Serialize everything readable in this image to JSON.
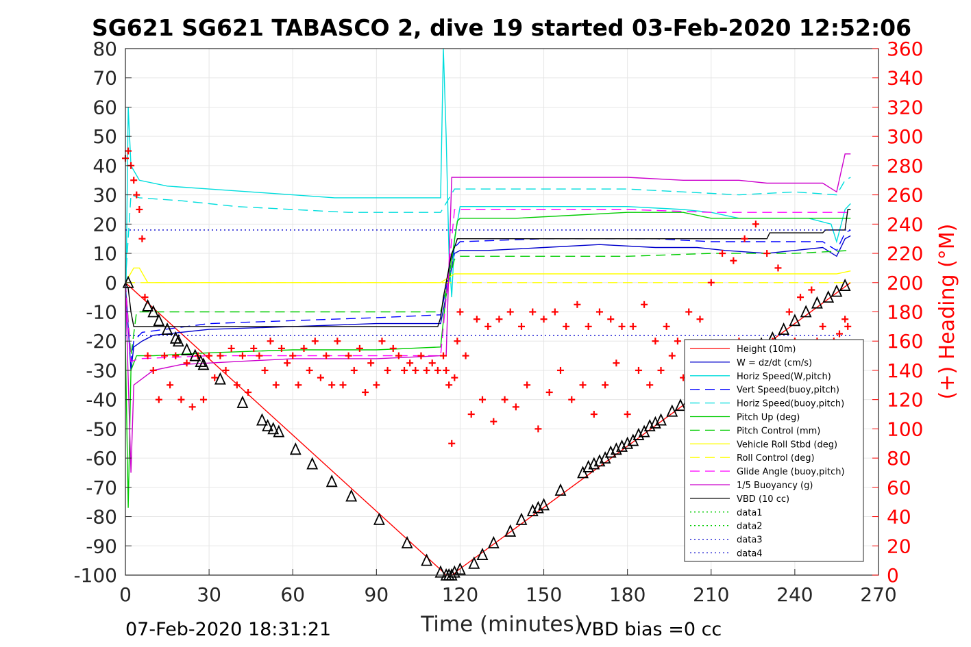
{
  "chart_data": {
    "type": "line",
    "title": "SG621 SG621 TABASCO 2, dive 19 started 03-Feb-2020 12:52:06",
    "xlabel": "Time (minutes)",
    "ylabel_right": "(+) Heading (°M)",
    "xlim": [
      0,
      270
    ],
    "ylim_left": [
      -100,
      80
    ],
    "ylim_right": [
      0,
      360
    ],
    "x_ticks": [
      "0",
      "30",
      "60",
      "90",
      "120",
      "150",
      "180",
      "210",
      "240",
      "270"
    ],
    "y_ticks_left": [
      "-100",
      "-90",
      "-80",
      "-70",
      "-60",
      "-50",
      "-40",
      "-30",
      "-20",
      "-10",
      "0",
      "10",
      "20",
      "30",
      "40",
      "50",
      "60",
      "70",
      "80"
    ],
    "y_ticks_right": [
      "0",
      "20",
      "40",
      "60",
      "80",
      "100",
      "120",
      "140",
      "160",
      "180",
      "200",
      "220",
      "240",
      "260",
      "280",
      "300",
      "320",
      "340",
      "360"
    ],
    "grid": true,
    "legend_position": "lower-right",
    "footer_left": "07-Feb-2020 18:31:21",
    "footer_right": "VBD bias =0 cc",
    "series": [
      {
        "name": "Height (10m)",
        "color": "#ff0000",
        "style": "solid",
        "x": [
          0,
          114,
          115,
          116,
          117,
          118,
          119,
          260
        ],
        "y": [
          0,
          -99,
          -100,
          -100,
          -100,
          -99.5,
          -98.5,
          0
        ]
      },
      {
        "name": "W = dz/dt (cm/s)",
        "color": "#0000cc",
        "style": "solid",
        "x": [
          0,
          2,
          3,
          6,
          10,
          30,
          60,
          90,
          113,
          118,
          120,
          130,
          150,
          170,
          190,
          205,
          215,
          230,
          250,
          255,
          258,
          260
        ],
        "y": [
          0,
          -30,
          -22,
          -20,
          -18,
          -16,
          -15,
          -14,
          -14,
          10,
          11,
          11,
          12,
          13,
          12,
          12,
          11,
          10,
          12,
          9,
          15,
          16
        ]
      },
      {
        "name": "Horiz Speed(W,pitch)",
        "color": "#00dddd",
        "style": "solid",
        "x": [
          0,
          1,
          2,
          5,
          15,
          30,
          45,
          60,
          75,
          90,
          105,
          113,
          114,
          115,
          116,
          117,
          118,
          120,
          140,
          160,
          180,
          200,
          210,
          220,
          235,
          245,
          253,
          255,
          258,
          260
        ],
        "y": [
          -20,
          60,
          40,
          35,
          33,
          32,
          31,
          30,
          29,
          29,
          29,
          29,
          80,
          50,
          10,
          -5,
          15,
          26,
          26,
          26,
          26,
          25,
          24,
          22,
          22,
          22,
          20,
          14,
          25,
          27
        ]
      },
      {
        "name": "Vert Speed(buoy,pitch)",
        "color": "#0000ff",
        "style": "dashed",
        "x": [
          0,
          2,
          3,
          6,
          30,
          60,
          90,
          113,
          118,
          120,
          150,
          170,
          190,
          210,
          230,
          250,
          255,
          258,
          260
        ],
        "y": [
          0,
          -27,
          -20,
          -17,
          -14,
          -13,
          -12,
          -11,
          12,
          14,
          15,
          15,
          15,
          14,
          14,
          14,
          11,
          17,
          18
        ]
      },
      {
        "name": "Horiz Speed(buoy,pitch)",
        "color": "#00dddd",
        "style": "dashed",
        "x": [
          0,
          2,
          5,
          20,
          40,
          60,
          80,
          100,
          113,
          118,
          120,
          140,
          160,
          180,
          200,
          220,
          240,
          255,
          258,
          260
        ],
        "y": [
          0,
          30,
          29,
          28,
          26,
          25,
          24,
          24,
          24,
          32,
          32,
          32,
          32,
          32,
          31,
          30,
          31,
          30,
          35,
          36
        ]
      },
      {
        "name": "Pitch Up (deg)",
        "color": "#00cc00",
        "style": "solid",
        "x": [
          0,
          1,
          2,
          4,
          10,
          30,
          60,
          90,
          113,
          115,
          117,
          119,
          120,
          140,
          160,
          180,
          200,
          210,
          230,
          250,
          258,
          260
        ],
        "y": [
          -20,
          -77,
          -30,
          -25,
          -25,
          -24,
          -23,
          -23,
          -22,
          -4,
          8,
          21,
          22,
          22,
          23,
          24,
          24,
          22,
          22,
          22,
          22,
          22
        ]
      },
      {
        "name": "Pitch Control (mm)",
        "color": "#00cc00",
        "style": "dashed",
        "x": [
          0,
          2,
          4,
          30,
          60,
          90,
          113,
          118,
          120,
          150,
          180,
          210,
          240,
          260
        ],
        "y": [
          0,
          -25,
          -10,
          -10,
          -10,
          -10,
          -10,
          8,
          9,
          9,
          9,
          10,
          10,
          11
        ]
      },
      {
        "name": "Vehicle Roll Stbd (deg)",
        "color": "#ffff00",
        "style": "solid",
        "x": [
          0,
          3,
          5,
          8,
          10,
          30,
          60,
          90,
          113,
          118,
          120,
          140,
          160,
          180,
          200,
          220,
          240,
          255,
          260
        ],
        "y": [
          0,
          5,
          5,
          0,
          0,
          0,
          0,
          0,
          0,
          3,
          3,
          3,
          3,
          3,
          3,
          3,
          3,
          3,
          4
        ]
      },
      {
        "name": "Roll Control (deg)",
        "color": "#ffff00",
        "style": "dashed",
        "x": [
          0,
          260
        ],
        "y": [
          0,
          0
        ]
      },
      {
        "name": "Glide Angle (buoy,pitch)",
        "color": "#ff00ff",
        "style": "dashed",
        "x": [
          0,
          2,
          5,
          30,
          60,
          90,
          113,
          118,
          120,
          150,
          180,
          210,
          240,
          260
        ],
        "y": [
          0,
          -27,
          -26,
          -25,
          -25,
          -25,
          -25,
          25,
          25,
          25,
          25,
          24,
          24,
          24
        ]
      },
      {
        "name": "1/5 Buoyancy (g)",
        "color": "#cc00cc",
        "style": "solid",
        "x": [
          0,
          2,
          3,
          10,
          20,
          40,
          60,
          90,
          113,
          115,
          117,
          120,
          140,
          160,
          180,
          200,
          220,
          230,
          240,
          250,
          255,
          258,
          260
        ],
        "y": [
          0,
          -65,
          -35,
          -30,
          -28,
          -27,
          -26,
          -26,
          -25,
          -25,
          36,
          36,
          36,
          36,
          36,
          35,
          35,
          34,
          34,
          34,
          31,
          44,
          44
        ]
      },
      {
        "name": "VBD (10 cc)",
        "color": "#000000",
        "style": "solid",
        "x": [
          0,
          1,
          2,
          3,
          112,
          113,
          114,
          115,
          116,
          117,
          118,
          119,
          120,
          230,
          231,
          250,
          251,
          258,
          259,
          260
        ],
        "y": [
          0,
          -2,
          -10,
          -15,
          -15,
          -12,
          -5,
          0,
          5,
          10,
          12,
          15,
          15,
          15,
          17,
          17,
          18,
          18,
          25,
          25
        ]
      },
      {
        "name": "data1",
        "color": "#00cc00",
        "style": "dotted",
        "x": [],
        "y": []
      },
      {
        "name": "data2",
        "color": "#00cc00",
        "style": "dotted",
        "x": [],
        "y": []
      },
      {
        "name": "data3",
        "color": "#0000cc",
        "style": "dotted",
        "x": [
          0,
          260
        ],
        "y": [
          18,
          18
        ]
      },
      {
        "name": "data4",
        "color": "#0000cc",
        "style": "dotted",
        "x": [
          0,
          260
        ],
        "y": [
          -18,
          -18
        ]
      }
    ],
    "heading_markers": {
      "color": "#ff0000",
      "marker": "+",
      "x": [
        0,
        1,
        2,
        3,
        4,
        5,
        6,
        7,
        8,
        10,
        12,
        14,
        16,
        18,
        20,
        22,
        24,
        26,
        28,
        30,
        32,
        34,
        36,
        38,
        40,
        42,
        44,
        46,
        48,
        50,
        52,
        54,
        56,
        58,
        60,
        62,
        64,
        66,
        68,
        70,
        72,
        74,
        76,
        78,
        80,
        82,
        84,
        86,
        88,
        90,
        92,
        94,
        96,
        98,
        100,
        102,
        104,
        106,
        108,
        110,
        112,
        114,
        115,
        116,
        117,
        118,
        119,
        120,
        122,
        124,
        126,
        128,
        130,
        132,
        134,
        136,
        138,
        140,
        142,
        144,
        146,
        148,
        150,
        152,
        154,
        156,
        158,
        160,
        162,
        164,
        166,
        168,
        170,
        172,
        174,
        176,
        178,
        180,
        182,
        184,
        186,
        188,
        190,
        192,
        194,
        196,
        198,
        200,
        202,
        204,
        206,
        208,
        210,
        212,
        214,
        216,
        218,
        220,
        222,
        224,
        226,
        228,
        230,
        232,
        234,
        236,
        238,
        240,
        242,
        244,
        246,
        248,
        250,
        252,
        254,
        256,
        258,
        259
      ],
      "y": [
        285,
        290,
        280,
        270,
        260,
        250,
        230,
        190,
        150,
        140,
        120,
        150,
        130,
        150,
        120,
        145,
        115,
        150,
        120,
        150,
        135,
        150,
        140,
        155,
        130,
        150,
        125,
        155,
        150,
        140,
        160,
        130,
        155,
        145,
        150,
        130,
        155,
        140,
        160,
        135,
        150,
        130,
        160,
        130,
        150,
        140,
        155,
        125,
        145,
        130,
        160,
        140,
        155,
        150,
        140,
        145,
        140,
        150,
        140,
        145,
        140,
        150,
        140,
        130,
        90,
        135,
        160,
        180,
        150,
        110,
        175,
        120,
        170,
        105,
        175,
        120,
        180,
        115,
        170,
        130,
        180,
        100,
        175,
        125,
        180,
        140,
        170,
        120,
        185,
        130,
        170,
        110,
        180,
        130,
        175,
        145,
        170,
        110,
        170,
        140,
        185,
        130,
        160,
        140,
        170,
        150,
        160,
        135,
        180,
        130,
        175,
        140,
        200,
        150,
        220,
        140,
        215,
        160,
        230,
        150,
        240,
        145,
        220,
        160,
        210,
        155,
        180,
        160,
        190,
        150,
        195,
        160,
        170,
        150,
        160,
        165,
        175,
        170
      ]
    },
    "depth_markers": {
      "color": "#000000",
      "marker": "triangle",
      "x": [
        1,
        8,
        10,
        12,
        15,
        18,
        19,
        22,
        25,
        27,
        28,
        34,
        42,
        49,
        51,
        53,
        55,
        61,
        67,
        74,
        81,
        91,
        101,
        108,
        113,
        115,
        116,
        117,
        118,
        120,
        125,
        128,
        132,
        138,
        142,
        146,
        148,
        150,
        156,
        164,
        166,
        168,
        170,
        172,
        174,
        176,
        178,
        180,
        182,
        184,
        186,
        188,
        190,
        192,
        196,
        199,
        202,
        205,
        208,
        212,
        216,
        220,
        224,
        228,
        232,
        236,
        240,
        244,
        248,
        252,
        255,
        258
      ],
      "y": [
        0,
        -8,
        -10,
        -13,
        -16,
        -19,
        -20,
        -23,
        -25,
        -27,
        -28,
        -33,
        -41,
        -47,
        -49,
        -50,
        -51,
        -57,
        -62,
        -68,
        -73,
        -81,
        -89,
        -95,
        -99,
        -100,
        -100,
        -100,
        -99,
        -98,
        -96,
        -93,
        -89,
        -85,
        -81,
        -78,
        -77,
        -76,
        -71,
        -65,
        -63,
        -62,
        -61,
        -60,
        -58,
        -57,
        -56,
        -55,
        -54,
        -52,
        -51,
        -49,
        -48,
        -47,
        -44,
        -42,
        -40,
        -37,
        -35,
        -32,
        -29,
        -26,
        -23,
        -21,
        -19,
        -16,
        -13,
        -10,
        -7,
        -5,
        -3,
        -1
      ]
    }
  }
}
